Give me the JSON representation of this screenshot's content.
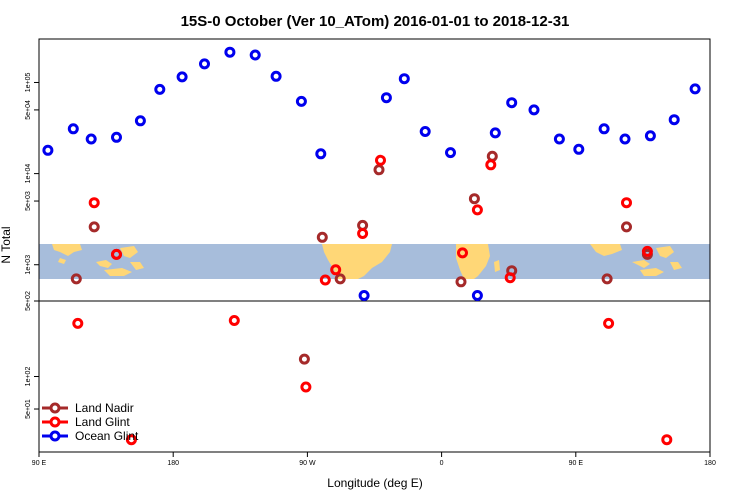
{
  "chart_data": {
    "type": "scatter",
    "title": "15S-0 October (Ver 10_ATom)   2016-01-01 to 2018-12-31",
    "xlabel": "Longitude (deg E)",
    "ylabel": "N Total",
    "x_ticks": [
      {
        "value": 90,
        "label": "90 E"
      },
      {
        "value": 180,
        "label": "180"
      },
      {
        "value": 270,
        "label": "90 W"
      },
      {
        "value": 360,
        "label": "0"
      },
      {
        "value": 450,
        "label": "90 E"
      },
      {
        "value": 540,
        "label": "180"
      }
    ],
    "xlim": [
      90,
      540
    ],
    "upper_panel": {
      "ylim": [
        400,
        300000
      ],
      "y_ticks": [
        {
          "value": 1000,
          "label": "1e+03"
        },
        {
          "value": 5000,
          "label": "5e+03"
        },
        {
          "value": 10000,
          "label": "1e+04"
        },
        {
          "value": 50000,
          "label": "5e+04"
        },
        {
          "value": 100000,
          "label": "1e+05"
        }
      ]
    },
    "lower_panel": {
      "ylim": [
        20,
        500
      ],
      "y_ticks": [
        {
          "value": 50,
          "label": "5e+01"
        },
        {
          "value": 100,
          "label": "1e+02"
        },
        {
          "value": 500,
          "label": "5e+02"
        }
      ]
    },
    "series": [
      {
        "name": "Land Nadir",
        "color": "#a52a2a",
        "points": [
          {
            "x": 115,
            "y": 700
          },
          {
            "x": 127,
            "y": 2600
          },
          {
            "x": 142,
            "y": 1300
          },
          {
            "x": 268,
            "y": 145
          },
          {
            "x": 280,
            "y": 2000
          },
          {
            "x": 292,
            "y": 700
          },
          {
            "x": 307,
            "y": 2700
          },
          {
            "x": 318,
            "y": 11000
          },
          {
            "x": 373,
            "y": 650
          },
          {
            "x": 382,
            "y": 5300
          },
          {
            "x": 394,
            "y": 15500
          },
          {
            "x": 407,
            "y": 860
          },
          {
            "x": 471,
            "y": 700
          },
          {
            "x": 484,
            "y": 2600
          },
          {
            "x": 498,
            "y": 1300
          }
        ]
      },
      {
        "name": "Land Glint",
        "color": "#ff0000",
        "points": [
          {
            "x": 116,
            "y": 310
          },
          {
            "x": 127,
            "y": 4800
          },
          {
            "x": 142,
            "y": 1300
          },
          {
            "x": 152,
            "y": 26
          },
          {
            "x": 221,
            "y": 330
          },
          {
            "x": 269,
            "y": 80
          },
          {
            "x": 282,
            "y": 680
          },
          {
            "x": 289,
            "y": 880
          },
          {
            "x": 307,
            "y": 2200
          },
          {
            "x": 319,
            "y": 14000
          },
          {
            "x": 374,
            "y": 1350
          },
          {
            "x": 384,
            "y": 4000
          },
          {
            "x": 393,
            "y": 12500
          },
          {
            "x": 406,
            "y": 720
          },
          {
            "x": 472,
            "y": 310
          },
          {
            "x": 484,
            "y": 4800
          },
          {
            "x": 498,
            "y": 1400
          },
          {
            "x": 511,
            "y": 26
          }
        ]
      },
      {
        "name": "Ocean Glint",
        "color": "#0000ee",
        "points": [
          {
            "x": 96,
            "y": 18000
          },
          {
            "x": 113,
            "y": 31000
          },
          {
            "x": 125,
            "y": 24000
          },
          {
            "x": 142,
            "y": 25000
          },
          {
            "x": 158,
            "y": 38000
          },
          {
            "x": 171,
            "y": 84000
          },
          {
            "x": 186,
            "y": 115000
          },
          {
            "x": 201,
            "y": 160000
          },
          {
            "x": 218,
            "y": 215000
          },
          {
            "x": 235,
            "y": 200000
          },
          {
            "x": 249,
            "y": 117000
          },
          {
            "x": 266,
            "y": 62000
          },
          {
            "x": 279,
            "y": 16500
          },
          {
            "x": 308,
            "y": 460
          },
          {
            "x": 323,
            "y": 68000
          },
          {
            "x": 335,
            "y": 110000
          },
          {
            "x": 349,
            "y": 29000
          },
          {
            "x": 366,
            "y": 17000
          },
          {
            "x": 384,
            "y": 460
          },
          {
            "x": 396,
            "y": 28000
          },
          {
            "x": 407,
            "y": 60000
          },
          {
            "x": 422,
            "y": 50000
          },
          {
            "x": 439,
            "y": 24000
          },
          {
            "x": 452,
            "y": 18500
          },
          {
            "x": 469,
            "y": 31000
          },
          {
            "x": 483,
            "y": 24000
          },
          {
            "x": 500,
            "y": 26000
          },
          {
            "x": 516,
            "y": 39000
          },
          {
            "x": 530,
            "y": 85000
          }
        ]
      }
    ],
    "legend_position": "bottom-left",
    "background_map": "world map strip (ocean blue, land yellow) drawn in the 1e+03 band"
  }
}
